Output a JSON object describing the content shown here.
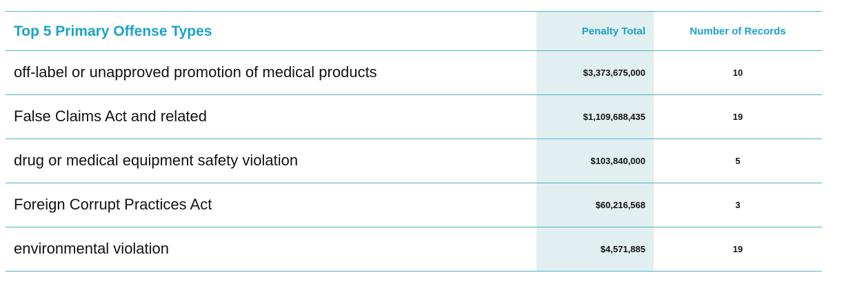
{
  "table": {
    "title": "Top 5 Primary Offense Types",
    "columns": [
      "Penalty Total",
      "Number of Records"
    ],
    "rows": [
      [
        "off-label or unapproved promotion of medical products",
        "$3,373,675,000",
        10
      ],
      [
        "False Claims Act and related",
        "$1,109,688,435",
        19
      ],
      [
        "drug or medical equipment safety violation",
        "$103,840,000",
        5
      ],
      [
        "Foreign Corrupt Practices Act",
        "$60,216,568",
        3
      ],
      [
        "environmental violation",
        "$4,571,885",
        19
      ]
    ]
  }
}
